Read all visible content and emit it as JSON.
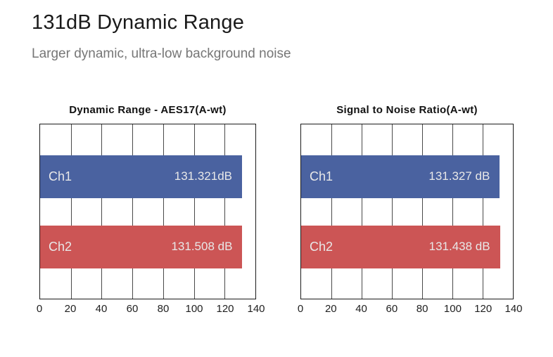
{
  "page": {
    "title": "131dB Dynamic Range",
    "subtitle": "Larger dynamic, ultra-low background noise"
  },
  "colors": {
    "bar_blue": "#4A62A0",
    "bar_red": "#CC5555",
    "bar_label_text": "#E8E8E8",
    "gridline": "#4A4A4A",
    "plot_frame": "#1A1A1A",
    "title_text": "#1A1A1A",
    "subtitle_text": "#767676"
  },
  "chart_data": [
    {
      "type": "bar",
      "orientation": "horizontal",
      "title": "Dynamic Range - AES17(A-wt)",
      "categories": [
        "Ch1",
        "Ch2"
      ],
      "values": [
        131.321,
        131.508
      ],
      "value_labels": [
        "131.321dB",
        "131.508 dB"
      ],
      "bar_colors": [
        "#4A62A0",
        "#CC5555"
      ],
      "xlim": [
        0,
        140
      ],
      "x_ticks": [
        0,
        20,
        40,
        60,
        80,
        100,
        120,
        140
      ],
      "grid": true,
      "legend": false
    },
    {
      "type": "bar",
      "orientation": "horizontal",
      "title": "Signal to Noise Ratio(A-wt)",
      "categories": [
        "Ch1",
        "Ch2"
      ],
      "values": [
        131.327,
        131.438
      ],
      "value_labels": [
        "131.327 dB",
        "131.438 dB"
      ],
      "bar_colors": [
        "#4A62A0",
        "#CC5555"
      ],
      "xlim": [
        0,
        140
      ],
      "x_ticks": [
        0,
        20,
        40,
        60,
        80,
        100,
        120,
        140
      ],
      "grid": true,
      "legend": false
    }
  ]
}
